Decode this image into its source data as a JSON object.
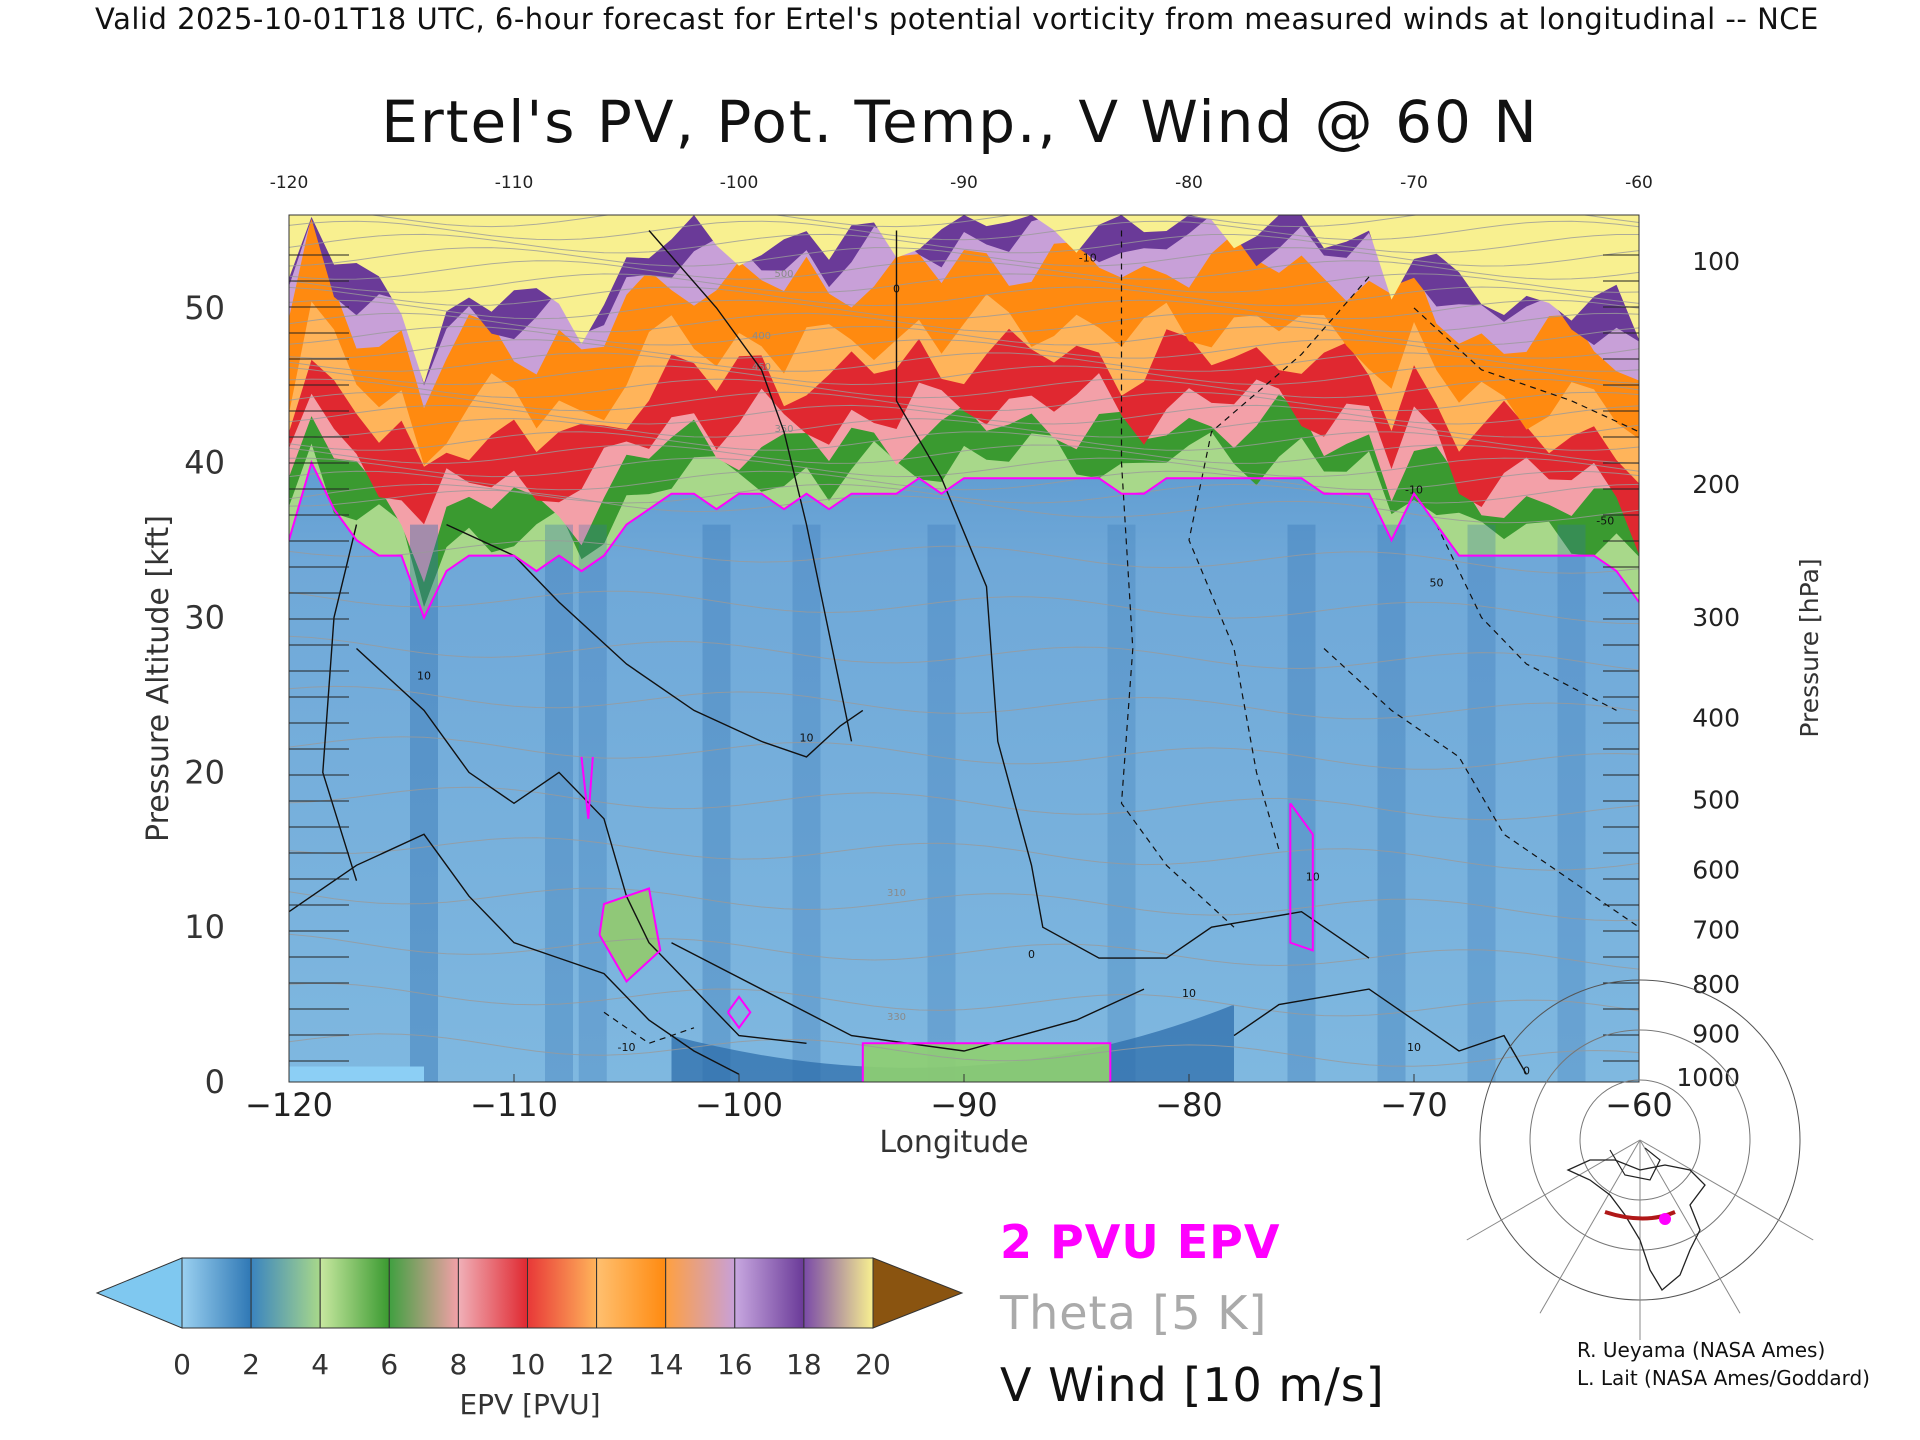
{
  "header": {
    "text": "Valid 2025-10-01T18 UTC, 6-hour forecast for Ertel's potential vorticity from measured winds at longitudinal -- NCE"
  },
  "chart_data": {
    "type": "heatmap",
    "title": "Ertel's PV, Pot. Temp., V Wind @ 60 N",
    "xlabel": "Longitude",
    "ylabel_left": "Pressure Altitude [kft]",
    "ylabel_right": "Pressure [hPa]",
    "xlim": [
      -120,
      -60
    ],
    "ylim": [
      0,
      56
    ],
    "x_ticks": [
      -120,
      -110,
      -100,
      -90,
      -80,
      -70,
      -60
    ],
    "x_ticks_top": [
      "-120",
      "-110",
      "-100",
      "-90",
      "-80",
      "-70",
      "-60"
    ],
    "y_ticks_left": [
      0,
      10,
      20,
      30,
      40,
      50
    ],
    "y_ticks_right": [
      {
        "label": "100",
        "kft": 53.1
      },
      {
        "label": "200",
        "kft": 38.7
      },
      {
        "label": "300",
        "kft": 30.1
      },
      {
        "label": "400",
        "kft": 23.6
      },
      {
        "label": "500",
        "kft": 18.3
      },
      {
        "label": "600",
        "kft": 13.8
      },
      {
        "label": "700",
        "kft": 9.9
      },
      {
        "label": "800",
        "kft": 6.4
      },
      {
        "label": "900",
        "kft": 3.2
      },
      {
        "label": "1000",
        "kft": 0.4
      }
    ],
    "tropopause_2pvu_kft": {
      "x": [
        -120,
        -119,
        -118,
        -117,
        -116,
        -115,
        -114,
        -113,
        -112,
        -111,
        -110,
        -109,
        -108,
        -107,
        -106,
        -105,
        -104,
        -103,
        -102,
        -101,
        -100,
        -99,
        -98,
        -97,
        -96,
        -95,
        -94,
        -93,
        -92,
        -91,
        -90,
        -89,
        -88,
        -87,
        -86,
        -85,
        -84,
        -83,
        -82,
        -81,
        -80,
        -79,
        -78,
        -77,
        -76,
        -75,
        -74,
        -73,
        -72,
        -71,
        -70,
        -69,
        -68,
        -67,
        -66,
        -65,
        -64,
        -63,
        -62,
        -61,
        -60
      ],
      "y": [
        35,
        40,
        37,
        35,
        34,
        34,
        30,
        33,
        34,
        34,
        34,
        33,
        34,
        33,
        34,
        36,
        37,
        38,
        38,
        37,
        38,
        38,
        37,
        38,
        37,
        38,
        38,
        38,
        39,
        38,
        39,
        39,
        39,
        39,
        39,
        39,
        39,
        38,
        38,
        39,
        39,
        39,
        39,
        39,
        39,
        39,
        38,
        38,
        38,
        35,
        38,
        36,
        34,
        34,
        34,
        34,
        34,
        34,
        34,
        33,
        31
      ]
    },
    "v_wind_contour_labels": [
      "10",
      "0",
      "10",
      "-10",
      "0",
      "10",
      "10",
      "-10",
      "-10",
      "50",
      "0",
      "-50",
      "10"
    ],
    "theta_contour_labels": [
      "310",
      "330",
      "350",
      "400",
      "450",
      "500"
    ],
    "colorbar": {
      "label": "EPV [PVU]",
      "ticks": [
        "0",
        "2",
        "4",
        "6",
        "8",
        "10",
        "12",
        "14",
        "16",
        "18",
        "20"
      ],
      "colors": [
        "#7fc8f0",
        "#2f78b5",
        "#a8d88a",
        "#3a9a30",
        "#f3a0a8",
        "#e02830",
        "#ffb45a",
        "#ff8a10",
        "#c8a0d8",
        "#6a3a98",
        "#f8f090",
        "#8a5410"
      ]
    },
    "legend": [
      {
        "text": "2 PVU EPV",
        "color": "#ff00ff"
      },
      {
        "text": "Theta [5 K]",
        "color": "#aaaaaa"
      },
      {
        "text": "V Wind [10 m/s]",
        "color": "#111111"
      }
    ]
  },
  "credits": [
    "R. Ueyama (NASA Ames)",
    "L. Lait (NASA Ames/Goddard)"
  ]
}
